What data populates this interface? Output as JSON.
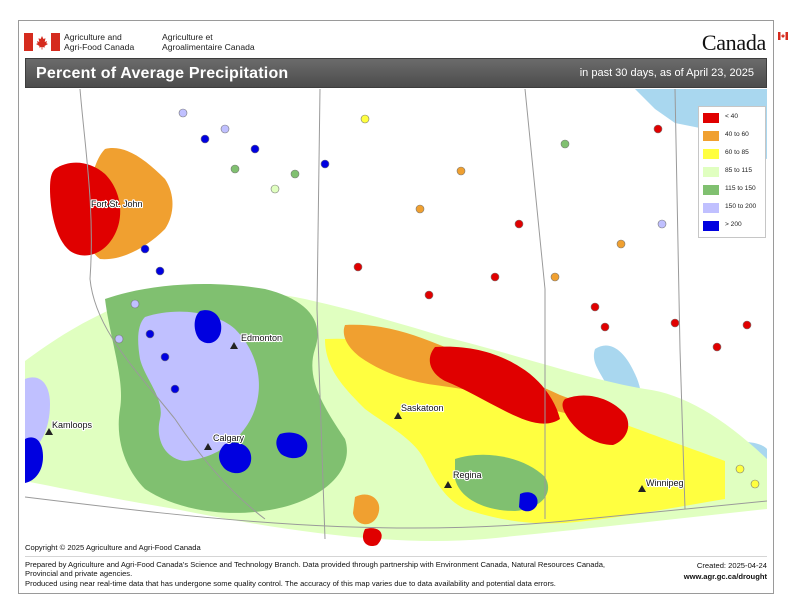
{
  "header": {
    "department_en": "Agriculture and\nAgri-Food Canada",
    "department_fr": "Agriculture et\nAgroalimentaire Canada",
    "wordmark": "Canada"
  },
  "title": {
    "main": "Percent of Average Precipitation",
    "period": "in past 30 days, as of April 23, 2025"
  },
  "legend": {
    "classes": [
      {
        "label": "< 40",
        "color": "#e00000"
      },
      {
        "label": "40 to 60",
        "color": "#f0a030"
      },
      {
        "label": "60 to 85",
        "color": "#ffff40"
      },
      {
        "label": "85 to 115",
        "color": "#e0ffc0"
      },
      {
        "label": "115 to 150",
        "color": "#80c070"
      },
      {
        "label": "150 to 200",
        "color": "#c0c0ff"
      },
      {
        "label": "> 200",
        "color": "#0000e0"
      }
    ]
  },
  "cities": [
    {
      "name": "Fort St. John"
    },
    {
      "name": "Edmonton"
    },
    {
      "name": "Saskatoon"
    },
    {
      "name": "Kamloops"
    },
    {
      "name": "Calgary"
    },
    {
      "name": "Regina"
    },
    {
      "name": "Winnipeg"
    }
  ],
  "footer": {
    "copyright": "Copyright © 2025 Agriculture and Agri-Food Canada",
    "prepared": "Prepared by Agriculture and Agri-Food Canada's Science and Technology Branch. Data provided through partnership with Environment Canada, Natural Resources Canada, Provincial and private agencies.",
    "quality": "Produced using near real-time data that has undergone some quality control. The accuracy of this map varies due to data availability and potential data errors.",
    "created": "Created: 2025-04-24",
    "url": "www.agr.gc.ca/drought"
  },
  "colors": {
    "water": "#a9d7ef",
    "land": "#ffffff",
    "boundary": "#9a9a9a",
    "titlebar": "#5a5a5a"
  }
}
